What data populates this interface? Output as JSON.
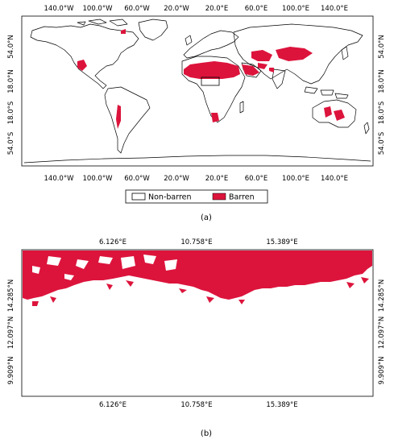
{
  "panel_a": {
    "lon_ticks_top": [
      "140.0°W",
      "100.0°W",
      "60.0°W",
      "20.0°W",
      "20.0°E",
      "60.0°E",
      "100.0°E",
      "140.0°E"
    ],
    "lon_ticks_bottom": [
      "140.0°W",
      "100.0°W",
      "60.0°W",
      "20.0°W",
      "20.0°E",
      "60.0°E",
      "100.0°E",
      "140.0°E"
    ],
    "lat_ticks": [
      "54.0°N",
      "18.0°N",
      "18.0°S",
      "54.0°S"
    ],
    "legend": [
      {
        "label": "Non-barren",
        "color": "#ffffff"
      },
      {
        "label": "Barren",
        "color": "#dc143c"
      }
    ],
    "caption": "(a)"
  },
  "panel_b": {
    "lon_ticks": [
      "6.126°E",
      "10.758°E",
      "15.389°E"
    ],
    "lat_ticks": [
      "14.285°N",
      "12.097°N",
      "9.909°N"
    ],
    "caption": "(b)"
  },
  "colors": {
    "barren": "#dc143c",
    "non_barren": "#ffffff",
    "coastline": "#000000"
  }
}
